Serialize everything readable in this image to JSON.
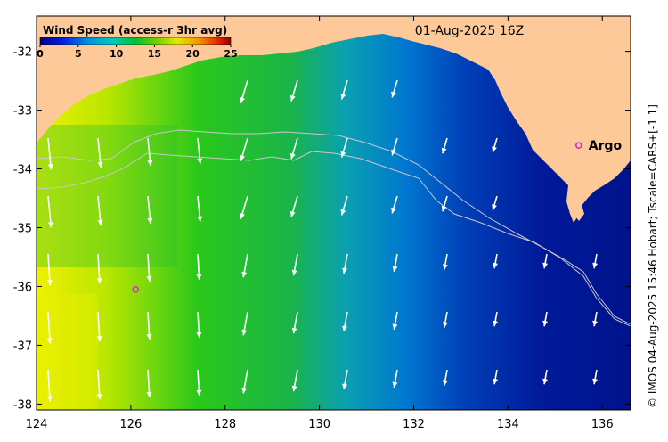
{
  "map": {
    "date_label": "01-Aug-2025 16Z",
    "credit": "© IMOS 04-Aug-2025 15:46 Hobart; Tscale=CARS+[-1 1]",
    "lon_range": [
      124,
      136.6
    ],
    "lat_range": [
      -38.1,
      -31.4
    ],
    "x_ticks": [
      "124",
      "126",
      "128",
      "130",
      "132",
      "134",
      "136"
    ],
    "y_ticks": [
      "-32",
      "-33",
      "-34",
      "-35",
      "-36",
      "-37",
      "-38"
    ],
    "land_color": "#fdc998"
  },
  "legend": {
    "title": "Wind Speed (access-r 3hr avg)",
    "ticks": [
      "0",
      "5",
      "10",
      "15",
      "20",
      "25"
    ]
  },
  "markers": [
    {
      "label": "Argo",
      "lon": 135.5,
      "lat": -33.6
    },
    {
      "label": "",
      "lon": 126.1,
      "lat": -36.05
    }
  ]
}
